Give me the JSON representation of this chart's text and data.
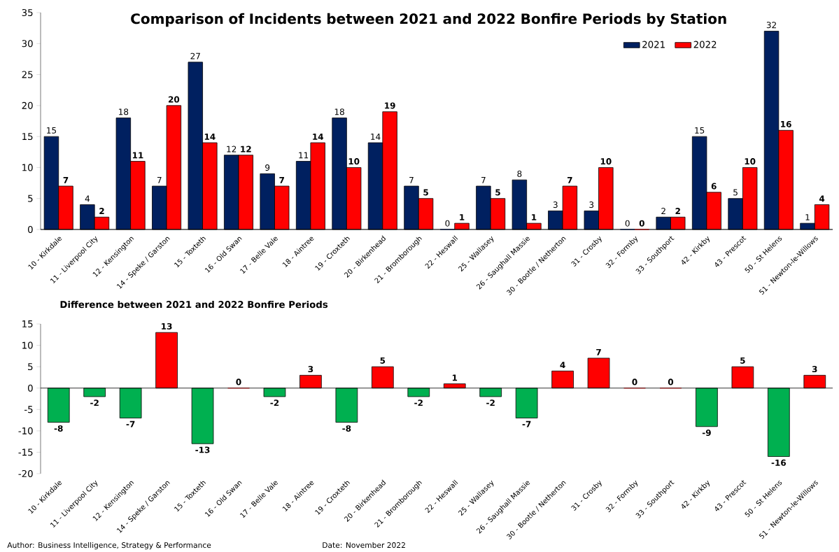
{
  "chart_data": [
    {
      "type": "bar",
      "title": "Comparison of Incidents between 2021 and 2022 Bonfire Periods by Station",
      "categories": [
        "10 - Kirkdale",
        "11 - Liverpool City",
        "12 - Kensington",
        "14 - Speke / Garston",
        "15 - Toxteth",
        "16 - Old Swan",
        "17 - Belle Vale",
        "18 - Aintree",
        "19 - Croxteth",
        "20 - Birkenhead",
        "21 - Bromborough",
        "22 - Heswall",
        "25 - Wallasey",
        "26 - Saughall Massie",
        "30 - Bootle / Netherton",
        "31 - Crosby",
        "32 - Formby",
        "33 - Southport",
        "42 - Kirkby",
        "43 - Prescot",
        "50 - St Helens",
        "51 - Newton-le-Willows"
      ],
      "series": [
        {
          "name": "2021",
          "color": "#002060",
          "values": [
            15,
            4,
            18,
            7,
            27,
            12,
            9,
            11,
            18,
            14,
            7,
            0,
            7,
            8,
            3,
            3,
            0,
            2,
            15,
            5,
            32,
            1
          ]
        },
        {
          "name": "2022",
          "color": "#ff0000",
          "values": [
            7,
            2,
            11,
            20,
            14,
            12,
            7,
            14,
            10,
            19,
            5,
            1,
            5,
            1,
            7,
            10,
            0,
            2,
            6,
            10,
            16,
            4
          ]
        }
      ],
      "ylim": [
        0,
        35
      ],
      "yticks": [
        0,
        5,
        10,
        15,
        20,
        25,
        30,
        35
      ],
      "legend": "top right",
      "data_labels": true
    },
    {
      "type": "bar",
      "title": "Difference between 2021 and 2022 Bonfire Periods",
      "categories": [
        "10 - Kirkdale",
        "11 - Liverpool City",
        "12 - Kensington",
        "14 - Speke / Garston",
        "15 - Toxteth",
        "16 - Old Swan",
        "17 - Belle Vale",
        "18 - Aintree",
        "19 - Croxteth",
        "20 - Birkenhead",
        "21 - Bromborough",
        "22 - Heswall",
        "25 - Wallasey",
        "26 - Saughall Massie",
        "30 - Bootle / Netherton",
        "31 - Crosby",
        "32 - Formby",
        "33 - Southport",
        "42 - Kirkby",
        "43 - Prescot",
        "50 - St Helens",
        "51 - Newton-le-Willows"
      ],
      "values": [
        -8,
        -2,
        -7,
        13,
        -13,
        0,
        -2,
        3,
        -8,
        5,
        -2,
        1,
        -2,
        -7,
        4,
        7,
        0,
        0,
        -9,
        5,
        -16,
        3
      ],
      "colors": [
        "#00b050",
        "#00b050",
        "#00b050",
        "#ff0000",
        "#00b050",
        "#ff0000",
        "#00b050",
        "#ff0000",
        "#00b050",
        "#ff0000",
        "#00b050",
        "#ff0000",
        "#00b050",
        "#00b050",
        "#ff0000",
        "#ff0000",
        "#ff0000",
        "#ff0000",
        "#00b050",
        "#ff0000",
        "#00b050",
        "#ff0000"
      ],
      "ylim": [
        -20,
        15
      ],
      "yticks": [
        -20,
        -15,
        -10,
        -5,
        0,
        5,
        10,
        15
      ],
      "data_labels": true,
      "annotations": [
        "Author: Business Intelligence,  Strategy & Performance",
        "Date: November 2022"
      ]
    }
  ]
}
